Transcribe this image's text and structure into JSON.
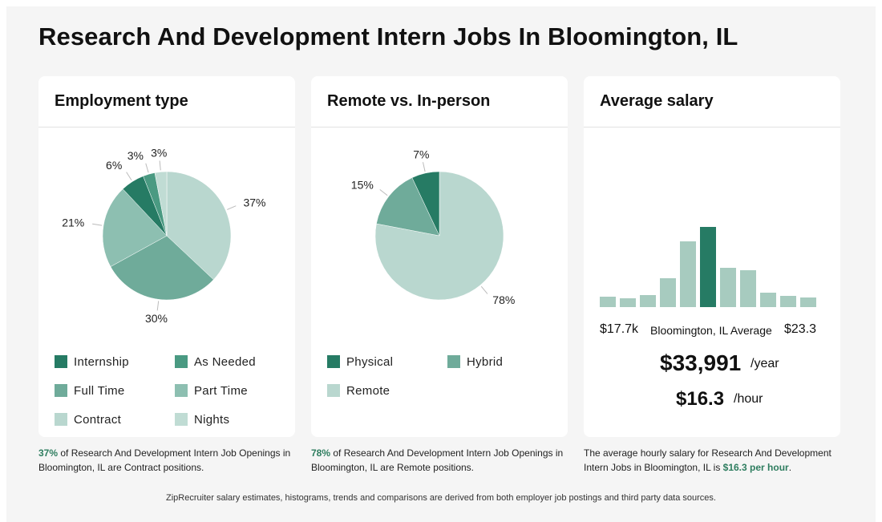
{
  "page": {
    "title": "Research And Development Intern Jobs In Bloomington, IL"
  },
  "colors": {
    "internship": "#267b64",
    "as_needed": "#4a9a82",
    "full_time": "#6fab9a",
    "part_time": "#8dbfb1",
    "contract": "#b9d7cf",
    "nights": "#c0dcd4",
    "physical": "#267b64",
    "hybrid": "#6fab9a",
    "remote": "#b9d7cf",
    "bar": "#a7cbbf",
    "bar_highlight": "#267b64"
  },
  "employment": {
    "title": "Employment type",
    "legend": [
      "Internship",
      "As Needed",
      "Full Time",
      "Part Time",
      "Contract",
      "Nights"
    ]
  },
  "remote": {
    "title": "Remote vs. In-person",
    "legend": [
      "Physical",
      "Hybrid",
      "Remote"
    ]
  },
  "salary": {
    "title": "Average salary",
    "min_label": "$17.7k",
    "center_label": "Bloomington, IL Average",
    "max_label": "$23.3",
    "yearly": "$33,991",
    "yearly_unit": "/year",
    "hourly": "$16.3",
    "hourly_unit": "/hour"
  },
  "notes": {
    "employment_pct": "37%",
    "employment_text": " of Research And Development Intern Job Openings in Bloomington, IL are Contract positions.",
    "remote_pct": "78%",
    "remote_text": " of Research And Development Intern Job Openings in Bloomington, IL are Remote positions.",
    "salary_text": "The average hourly salary for Research And Development Intern Jobs in Bloomington, IL is ",
    "salary_highlight": "$16.3 per hour",
    "salary_end": "."
  },
  "footer": "ZipRecruiter salary estimates, histograms, trends and comparisons are derived from both employer job postings and third party data sources.",
  "chart_data": [
    {
      "type": "pie",
      "title": "Employment type",
      "categories": [
        "Contract",
        "Part Time",
        "Full Time",
        "Internship",
        "As Needed",
        "Nights"
      ],
      "values": [
        37,
        30,
        21,
        6,
        3,
        3
      ],
      "labels": [
        "37%",
        "30%",
        "21%",
        "6%",
        "3%",
        "3%"
      ]
    },
    {
      "type": "pie",
      "title": "Remote vs. In-person",
      "categories": [
        "Remote",
        "Hybrid",
        "Physical"
      ],
      "values": [
        78,
        15,
        7
      ],
      "labels": [
        "78%",
        "15%",
        "7%"
      ]
    },
    {
      "type": "bar",
      "title": "Average salary",
      "categories": [
        "1",
        "2",
        "3",
        "4",
        "5",
        "6",
        "7",
        "8",
        "9",
        "10",
        "11"
      ],
      "values": [
        13,
        11,
        15,
        36,
        82,
        100,
        49,
        46,
        18,
        14,
        12
      ],
      "highlight_index": 5,
      "xlabel": "",
      "ylabel": ""
    }
  ]
}
